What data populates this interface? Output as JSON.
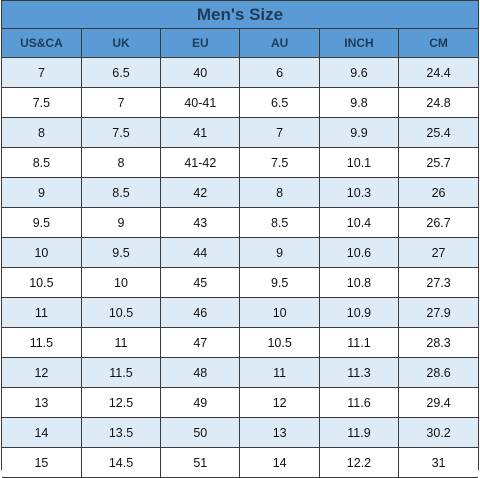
{
  "title": "Men's Size",
  "columns": [
    "US&CA",
    "UK",
    "EU",
    "AU",
    "INCH",
    "CM"
  ],
  "rows": [
    [
      "7",
      "6.5",
      "40",
      "6",
      "9.6",
      "24.4"
    ],
    [
      "7.5",
      "7",
      "40-41",
      "6.5",
      "9.8",
      "24.8"
    ],
    [
      "8",
      "7.5",
      "41",
      "7",
      "9.9",
      "25.4"
    ],
    [
      "8.5",
      "8",
      "41-42",
      "7.5",
      "10.1",
      "25.7"
    ],
    [
      "9",
      "8.5",
      "42",
      "8",
      "10.3",
      "26"
    ],
    [
      "9.5",
      "9",
      "43",
      "8.5",
      "10.4",
      "26.7"
    ],
    [
      "10",
      "9.5",
      "44",
      "9",
      "10.6",
      "27"
    ],
    [
      "10.5",
      "10",
      "45",
      "9.5",
      "10.8",
      "27.3"
    ],
    [
      "11",
      "10.5",
      "46",
      "10",
      "10.9",
      "27.9"
    ],
    [
      "11.5",
      "11",
      "47",
      "10.5",
      "11.1",
      "28.3"
    ],
    [
      "12",
      "11.5",
      "48",
      "11",
      "11.3",
      "28.6"
    ],
    [
      "13",
      "12.5",
      "49",
      "12",
      "11.6",
      "29.4"
    ],
    [
      "14",
      "13.5",
      "50",
      "13",
      "11.9",
      "30.2"
    ],
    [
      "15",
      "14.5",
      "51",
      "14",
      "12.2",
      "31"
    ]
  ],
  "colors": {
    "header_bg": "#5b9bd5",
    "header_text": "#1f3b57",
    "shaded_row_bg": "#ddebf7",
    "plain_row_bg": "#ffffff",
    "border": "#3a3a3a"
  }
}
